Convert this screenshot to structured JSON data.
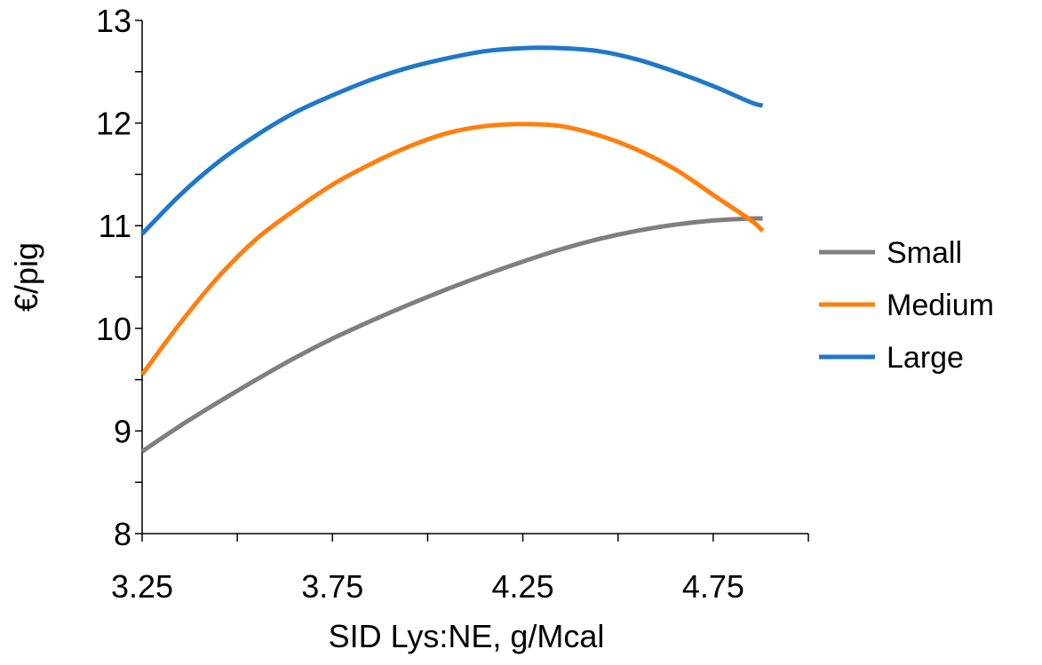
{
  "chart_data": {
    "type": "line",
    "title": "",
    "xlabel": "SID Lys:NE, g/Mcal",
    "ylabel": "€/pig",
    "xlim": [
      3.25,
      5.0
    ],
    "ylim": [
      8,
      13
    ],
    "x_ticks": [
      3.25,
      3.75,
      4.25,
      4.75
    ],
    "x_tick_labels": [
      "3.25",
      "3.75",
      "4.25",
      "4.75"
    ],
    "y_ticks": [
      8,
      9,
      10,
      11,
      12,
      13
    ],
    "y_tick_labels": [
      "8",
      "9",
      "10",
      "11",
      "12",
      "13"
    ],
    "grid": false,
    "legend_position": "right",
    "series": [
      {
        "name": "Small",
        "color": "#7f7f7f",
        "x": [
          3.25,
          3.35,
          3.45,
          3.55,
          3.65,
          3.75,
          3.85,
          3.95,
          4.05,
          4.15,
          4.25,
          4.35,
          4.45,
          4.55,
          4.65,
          4.75,
          4.85,
          4.88
        ],
        "y": [
          8.8,
          9.05,
          9.28,
          9.5,
          9.71,
          9.9,
          10.07,
          10.23,
          10.38,
          10.52,
          10.65,
          10.77,
          10.87,
          10.95,
          11.01,
          11.05,
          11.07,
          11.07
        ]
      },
      {
        "name": "Medium",
        "color": "#ff7f0e",
        "x": [
          3.25,
          3.35,
          3.45,
          3.55,
          3.65,
          3.75,
          3.85,
          3.95,
          4.05,
          4.15,
          4.25,
          4.35,
          4.45,
          4.55,
          4.65,
          4.75,
          4.85,
          4.88
        ],
        "y": [
          9.55,
          10.05,
          10.5,
          10.87,
          11.15,
          11.4,
          11.6,
          11.77,
          11.9,
          11.97,
          11.99,
          11.97,
          11.88,
          11.74,
          11.55,
          11.3,
          11.05,
          10.95
        ]
      },
      {
        "name": "Large",
        "color": "#1f78c8",
        "x": [
          3.25,
          3.35,
          3.45,
          3.55,
          3.65,
          3.75,
          3.85,
          3.95,
          4.05,
          4.15,
          4.25,
          4.35,
          4.45,
          4.55,
          4.65,
          4.75,
          4.85,
          4.88
        ],
        "y": [
          10.92,
          11.3,
          11.62,
          11.88,
          12.1,
          12.27,
          12.42,
          12.54,
          12.63,
          12.7,
          12.73,
          12.73,
          12.7,
          12.62,
          12.5,
          12.36,
          12.2,
          12.17
        ]
      }
    ]
  }
}
